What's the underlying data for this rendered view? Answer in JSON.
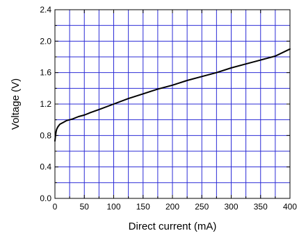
{
  "chart_data": {
    "type": "line",
    "title": "",
    "xlabel": "Direct current (mA)",
    "ylabel": "Voltage (V)",
    "xlim": [
      0,
      400
    ],
    "ylim": [
      0.0,
      2.4
    ],
    "x_ticks": [
      0,
      50,
      100,
      150,
      200,
      250,
      300,
      350,
      400
    ],
    "x_tick_labels": [
      "0",
      "50",
      "100",
      "150",
      "200",
      "250",
      "300",
      "350",
      "400"
    ],
    "y_ticks": [
      0.0,
      0.4,
      0.8,
      1.2,
      1.6,
      2.0,
      2.4
    ],
    "y_tick_labels": [
      "0.0",
      "0.4",
      "0.8",
      "1.2",
      "1.6",
      "2.0",
      "2.4"
    ],
    "grid": true,
    "grid_x_step": 25,
    "grid_y_step": 0.2,
    "colors": {
      "grid": "#2b2bd6",
      "line": "#000000",
      "axes": "#000000"
    },
    "series": [
      {
        "x": [
          0,
          1,
          2,
          3,
          5,
          8,
          10,
          15,
          20,
          25,
          30,
          40,
          50,
          60,
          75,
          100,
          125,
          150,
          175,
          200,
          225,
          250,
          275,
          300,
          325,
          350,
          375,
          400
        ],
        "y": [
          0.73,
          0.8,
          0.85,
          0.88,
          0.91,
          0.94,
          0.95,
          0.97,
          0.99,
          1.0,
          1.01,
          1.04,
          1.06,
          1.09,
          1.13,
          1.2,
          1.27,
          1.33,
          1.39,
          1.44,
          1.5,
          1.55,
          1.6,
          1.66,
          1.71,
          1.76,
          1.81,
          1.9
        ]
      }
    ]
  }
}
